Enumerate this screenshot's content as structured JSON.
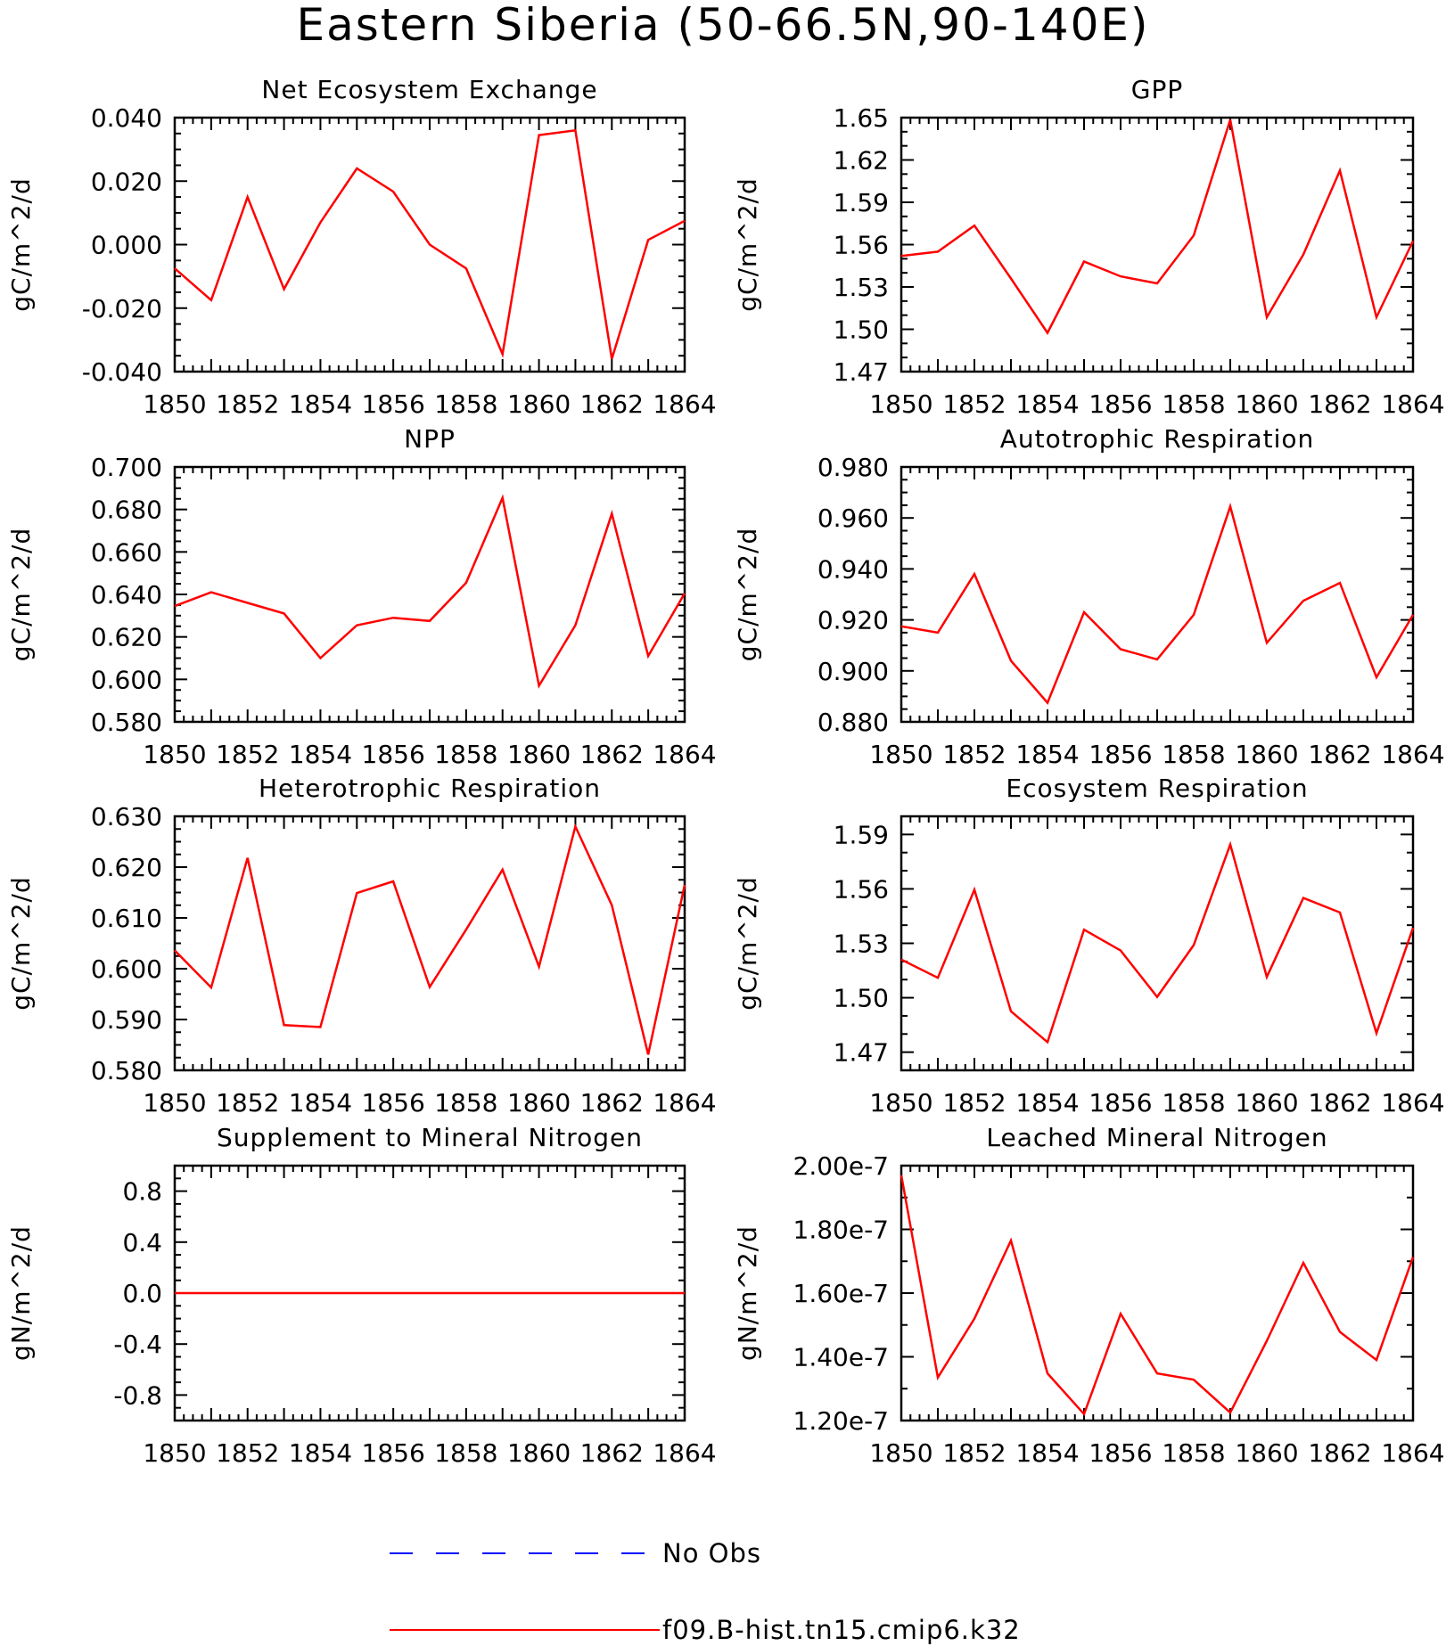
{
  "figure": {
    "title": "Eastern Siberia (50-66.5N,90-140E)",
    "years": [
      "1850",
      "1852",
      "1854",
      "1856",
      "1858",
      "1860",
      "1862",
      "1864"
    ]
  },
  "legend": [
    {
      "label": "No Obs",
      "color": "#0000ff",
      "style": "dashed"
    },
    {
      "label": "f09.B-hist.tn15.cmip6.k32",
      "color": "#ff0000",
      "style": "solid"
    }
  ],
  "chart_data": [
    {
      "type": "line",
      "title": "Net Ecosystem Exchange",
      "ylabel": "gC/m^2/d",
      "xlim": [
        1850,
        1864
      ],
      "ylim": [
        -0.04,
        0.04
      ],
      "yticks": [
        -0.04,
        -0.02,
        0.0,
        0.02,
        0.04
      ],
      "yticklabels": [
        "-0.040",
        "-0.020",
        "0.000",
        "0.020",
        "0.040"
      ],
      "yminor": 0.005,
      "x": [
        1850,
        1851,
        1852,
        1853,
        1854,
        1855,
        1856,
        1857,
        1858,
        1859,
        1860,
        1861,
        1862,
        1863,
        1864
      ],
      "series": [
        {
          "name": "f09.B-hist.tn15.cmip6.k32",
          "color": "#ff0000",
          "values": [
            -0.0075,
            -0.0175,
            0.015,
            -0.014,
            0.007,
            0.024,
            0.0167,
            0.0,
            -0.0075,
            -0.0345,
            0.0345,
            0.036,
            -0.036,
            0.0015,
            0.0075
          ]
        }
      ]
    },
    {
      "type": "line",
      "title": "GPP",
      "ylabel": "gC/m^2/d",
      "xlim": [
        1850,
        1864
      ],
      "ylim": [
        1.47,
        1.65
      ],
      "yticks": [
        1.47,
        1.5,
        1.53,
        1.56,
        1.59,
        1.62,
        1.65
      ],
      "yticklabels": [
        "1.47",
        "1.50",
        "1.53",
        "1.56",
        "1.59",
        "1.62",
        "1.65"
      ],
      "yminor": 0.01,
      "x": [
        1850,
        1851,
        1852,
        1853,
        1854,
        1855,
        1856,
        1857,
        1858,
        1859,
        1860,
        1861,
        1862,
        1863,
        1864
      ],
      "series": [
        {
          "name": "f09.B-hist.tn15.cmip6.k32",
          "color": "#ff0000",
          "values": [
            1.552,
            1.555,
            1.5735,
            1.536,
            1.4975,
            1.548,
            1.5375,
            1.5325,
            1.5665,
            1.6485,
            1.5085,
            1.553,
            1.6125,
            1.5085,
            1.5625
          ]
        }
      ]
    },
    {
      "type": "line",
      "title": "NPP",
      "ylabel": "gC/m^2/d",
      "xlim": [
        1850,
        1864
      ],
      "ylim": [
        0.58,
        0.7
      ],
      "yticks": [
        0.58,
        0.6,
        0.62,
        0.64,
        0.66,
        0.68,
        0.7
      ],
      "yticklabels": [
        "0.580",
        "0.600",
        "0.620",
        "0.640",
        "0.660",
        "0.680",
        "0.700"
      ],
      "yminor": 0.005,
      "x": [
        1850,
        1851,
        1852,
        1853,
        1854,
        1855,
        1856,
        1857,
        1858,
        1859,
        1860,
        1861,
        1862,
        1863,
        1864
      ],
      "series": [
        {
          "name": "f09.B-hist.tn15.cmip6.k32",
          "color": "#ff0000",
          "values": [
            0.6345,
            0.641,
            0.636,
            0.631,
            0.61,
            0.6255,
            0.629,
            0.6275,
            0.6455,
            0.6855,
            0.597,
            0.6255,
            0.678,
            0.611,
            0.6405
          ]
        }
      ]
    },
    {
      "type": "line",
      "title": "Autotrophic Respiration",
      "ylabel": "gC/m^2/d",
      "xlim": [
        1850,
        1864
      ],
      "ylim": [
        0.88,
        0.98
      ],
      "yticks": [
        0.88,
        0.9,
        0.92,
        0.94,
        0.96,
        0.98
      ],
      "yticklabels": [
        "0.880",
        "0.900",
        "0.920",
        "0.940",
        "0.960",
        "0.980"
      ],
      "yminor": 0.005,
      "x": [
        1850,
        1851,
        1852,
        1853,
        1854,
        1855,
        1856,
        1857,
        1858,
        1859,
        1860,
        1861,
        1862,
        1863,
        1864
      ],
      "series": [
        {
          "name": "f09.B-hist.tn15.cmip6.k32",
          "color": "#ff0000",
          "values": [
            0.9175,
            0.915,
            0.938,
            0.904,
            0.8875,
            0.923,
            0.9085,
            0.9045,
            0.922,
            0.9645,
            0.911,
            0.9275,
            0.9345,
            0.8975,
            0.922
          ]
        }
      ]
    },
    {
      "type": "line",
      "title": "Heterotrophic Respiration",
      "ylabel": "gC/m^2/d",
      "xlim": [
        1850,
        1864
      ],
      "ylim": [
        0.58,
        0.63
      ],
      "yticks": [
        0.58,
        0.59,
        0.6,
        0.61,
        0.62,
        0.63
      ],
      "yticklabels": [
        "0.580",
        "0.590",
        "0.600",
        "0.610",
        "0.620",
        "0.630"
      ],
      "yminor": 0.0025,
      "x": [
        1850,
        1851,
        1852,
        1853,
        1854,
        1855,
        1856,
        1857,
        1858,
        1859,
        1860,
        1861,
        1862,
        1863,
        1864
      ],
      "series": [
        {
          "name": "f09.B-hist.tn15.cmip6.k32",
          "color": "#ff0000",
          "values": [
            0.6036,
            0.5963,
            0.6218,
            0.5889,
            0.5885,
            0.6149,
            0.6172,
            0.5964,
            0.6077,
            0.6195,
            0.6004,
            0.628,
            0.6125,
            0.5831,
            0.6165
          ]
        }
      ]
    },
    {
      "type": "line",
      "title": "Ecosystem Respiration",
      "ylabel": "gC/m^2/d",
      "xlim": [
        1850,
        1864
      ],
      "ylim": [
        1.46,
        1.6
      ],
      "yticks": [
        1.47,
        1.5,
        1.53,
        1.56,
        1.59
      ],
      "yticklabels": [
        "1.47",
        "1.50",
        "1.53",
        "1.56",
        "1.59"
      ],
      "yminor": 0.01,
      "x": [
        1850,
        1851,
        1852,
        1853,
        1854,
        1855,
        1856,
        1857,
        1858,
        1859,
        1860,
        1861,
        1862,
        1863,
        1864
      ],
      "series": [
        {
          "name": "f09.B-hist.tn15.cmip6.k32",
          "color": "#ff0000",
          "values": [
            1.521,
            1.511,
            1.5595,
            1.4925,
            1.4755,
            1.5375,
            1.526,
            1.5005,
            1.529,
            1.5845,
            1.5115,
            1.555,
            1.547,
            1.4805,
            1.5385
          ]
        }
      ]
    },
    {
      "type": "line",
      "title": "Supplement to Mineral Nitrogen",
      "ylabel": "gN/m^2/d",
      "xlim": [
        1850,
        1864
      ],
      "ylim": [
        -1.0,
        1.0
      ],
      "yticks": [
        -0.8,
        -0.4,
        0.0,
        0.4,
        0.8
      ],
      "yticklabels": [
        "-0.8",
        "-0.4",
        "0.0",
        "0.4",
        "0.8"
      ],
      "yminor": 0.1,
      "x": [
        1850,
        1851,
        1852,
        1853,
        1854,
        1855,
        1856,
        1857,
        1858,
        1859,
        1860,
        1861,
        1862,
        1863,
        1864
      ],
      "series": [
        {
          "name": "f09.B-hist.tn15.cmip6.k32",
          "color": "#ff0000",
          "values": [
            0,
            0,
            0,
            0,
            0,
            0,
            0,
            0,
            0,
            0,
            0,
            0,
            0,
            0,
            0
          ]
        }
      ]
    },
    {
      "type": "line",
      "title": "Leached Mineral Nitrogen",
      "ylabel": "gN/m^2/d",
      "xlim": [
        1850,
        1864
      ],
      "ylim": [
        1.2e-07,
        2e-07
      ],
      "yticks": [
        1.2e-07,
        1.4e-07,
        1.6e-07,
        1.8e-07,
        2e-07
      ],
      "yticklabels": [
        "1.20e-7",
        "1.40e-7",
        "1.60e-7",
        "1.80e-7",
        "2.00e-7"
      ],
      "yminor": 1e-08,
      "x": [
        1850,
        1851,
        1852,
        1853,
        1854,
        1855,
        1856,
        1857,
        1858,
        1859,
        1860,
        1861,
        1862,
        1863,
        1864
      ],
      "series": [
        {
          "name": "f09.B-hist.tn15.cmip6.k32",
          "color": "#ff0000",
          "values": [
            1.97e-07,
            1.335e-07,
            1.52e-07,
            1.765e-07,
            1.348e-07,
            1.22e-07,
            1.535e-07,
            1.348e-07,
            1.328e-07,
            1.225e-07,
            1.45e-07,
            1.695e-07,
            1.478e-07,
            1.39e-07,
            1.713e-07
          ]
        }
      ]
    }
  ]
}
